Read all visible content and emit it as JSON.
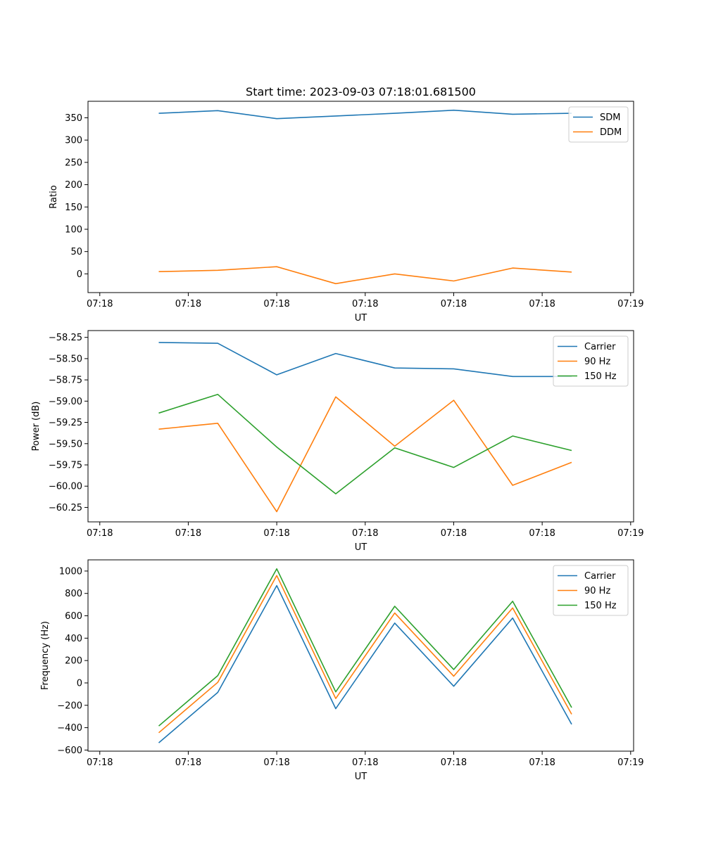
{
  "figure_title": "Start time: 2023-09-03 07:18:01.681500",
  "colors": {
    "blue": "#1f77b4",
    "orange": "#ff7f0e",
    "green": "#2ca02c"
  },
  "chart_data": [
    {
      "type": "line",
      "title": "Start time: 2023-09-03 07:18:01.681500",
      "xlabel": "UT",
      "ylabel": "Ratio",
      "xlim": [
        -0.2,
        9.05
      ],
      "ylim": [
        -42,
        387
      ],
      "x": [
        1,
        2,
        3,
        4,
        5,
        6,
        7,
        8
      ],
      "x_ticks": [
        0,
        1.5,
        3,
        4.5,
        6,
        7.5,
        9
      ],
      "x_tick_labels": [
        "07:18",
        "07:18",
        "07:18",
        "07:18",
        "07:18",
        "07:18",
        "07:19"
      ],
      "y_ticks": [
        0,
        50,
        100,
        150,
        200,
        250,
        300,
        350
      ],
      "y_tick_labels": [
        "0",
        "50",
        "100",
        "150",
        "200",
        "250",
        "300",
        "350"
      ],
      "legend_position": "top-right",
      "series": [
        {
          "name": "SDM",
          "color": "#1f77b4",
          "values": [
            360,
            366,
            348,
            354,
            360,
            367,
            358,
            360
          ]
        },
        {
          "name": "DDM",
          "color": "#ff7f0e",
          "values": [
            5,
            8,
            16,
            -22,
            0,
            -16,
            13,
            4
          ]
        }
      ]
    },
    {
      "type": "line",
      "title": "",
      "xlabel": "UT",
      "ylabel": "Power (dB)",
      "xlim": [
        -0.2,
        9.05
      ],
      "ylim": [
        -60.42,
        -58.17
      ],
      "x": [
        1,
        2,
        3,
        4,
        5,
        6,
        7,
        8
      ],
      "x_ticks": [
        0,
        1.5,
        3,
        4.5,
        6,
        7.5,
        9
      ],
      "x_tick_labels": [
        "07:18",
        "07:18",
        "07:18",
        "07:18",
        "07:18",
        "07:18",
        "07:19"
      ],
      "y_ticks": [
        -60.25,
        -60.0,
        -59.75,
        -59.5,
        -59.25,
        -59.0,
        -58.75,
        -58.5,
        -58.25
      ],
      "y_tick_labels": [
        "−60.25",
        "−60.00",
        "−59.75",
        "−59.50",
        "−59.25",
        "−59.00",
        "−58.75",
        "−58.50",
        "−58.25"
      ],
      "legend_position": "top-right",
      "series": [
        {
          "name": "Carrier",
          "color": "#1f77b4",
          "values": [
            -58.31,
            -58.32,
            -58.69,
            -58.44,
            -58.61,
            -58.62,
            -58.71,
            -58.71
          ]
        },
        {
          "name": "90 Hz",
          "color": "#ff7f0e",
          "values": [
            -59.33,
            -59.26,
            -60.3,
            -58.95,
            -59.53,
            -58.99,
            -59.99,
            -59.72
          ]
        },
        {
          "name": "150 Hz",
          "color": "#2ca02c",
          "values": [
            -59.14,
            -58.92,
            -59.54,
            -60.09,
            -59.55,
            -59.78,
            -59.41,
            -59.58
          ]
        }
      ]
    },
    {
      "type": "line",
      "title": "",
      "xlabel": "UT",
      "ylabel": "Frequency (Hz)",
      "xlim": [
        -0.2,
        9.05
      ],
      "ylim": [
        -610,
        1100
      ],
      "x": [
        1,
        2,
        3,
        4,
        5,
        6,
        7,
        8
      ],
      "x_ticks": [
        0,
        1.5,
        3,
        4.5,
        6,
        7.5,
        9
      ],
      "x_tick_labels": [
        "07:18",
        "07:18",
        "07:18",
        "07:18",
        "07:18",
        "07:18",
        "07:19"
      ],
      "y_ticks": [
        -600,
        -400,
        -200,
        0,
        200,
        400,
        600,
        800,
        1000
      ],
      "y_tick_labels": [
        "−600",
        "−400",
        "−200",
        "0",
        "200",
        "400",
        "600",
        "800",
        "1000"
      ],
      "legend_position": "top-right",
      "series": [
        {
          "name": "Carrier",
          "color": "#1f77b4",
          "values": [
            -535,
            -85,
            870,
            -230,
            535,
            -30,
            580,
            -370
          ]
        },
        {
          "name": "90 Hz",
          "color": "#ff7f0e",
          "values": [
            -445,
            5,
            960,
            -140,
            625,
            60,
            670,
            -280
          ]
        },
        {
          "name": "150 Hz",
          "color": "#2ca02c",
          "values": [
            -385,
            65,
            1020,
            -80,
            685,
            120,
            730,
            -220
          ]
        }
      ]
    }
  ]
}
